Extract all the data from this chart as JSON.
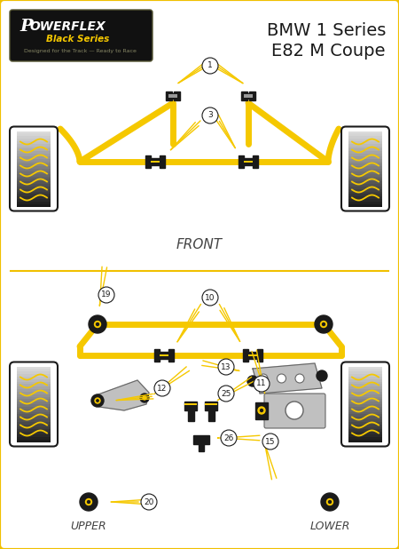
{
  "title_line1": "BMW 1 Series",
  "title_line2": "E82 M Coupe",
  "bg_color": "#ffffff",
  "border_color": "#f0c000",
  "yellow": "#f5c800",
  "black": "#1a1a1a",
  "gray": "#999999",
  "light_gray": "#c0c0c0",
  "dark_gray": "#666666",
  "front_label": "FRONT",
  "upper_label": "UPPER",
  "lower_label": "LOWER",
  "fig_w": 4.5,
  "fig_h": 6.18,
  "dpi": 100
}
